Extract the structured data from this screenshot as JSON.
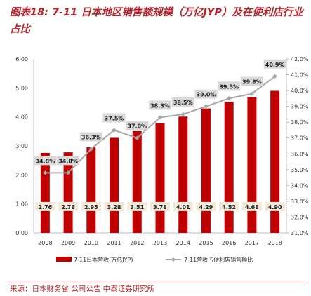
{
  "title": "图表18: 7-11 日本地区销售额规模（万亿JYP）及在便利店行业占比",
  "source": "来源：日本财务省 公司公告 中泰证券研究所",
  "colors": {
    "bar": "#c00000",
    "line": "#a6a6a6",
    "accent": "#b3222a"
  },
  "chart_data": {
    "type": "bar",
    "categories": [
      "2008",
      "2009",
      "2010",
      "2011",
      "2012",
      "2013",
      "2014",
      "2015",
      "2016",
      "2017",
      "2018"
    ],
    "series": [
      {
        "name": "7-11日本营收(万亿JYP)",
        "type": "bar",
        "axis": "left",
        "values": [
          2.76,
          2.78,
          2.95,
          3.28,
          3.51,
          3.78,
          4.01,
          4.29,
          4.52,
          4.68,
          4.9
        ],
        "labels": [
          "2.76",
          "2.78",
          "2.95",
          "3.28",
          "3.51",
          "3.78",
          "4.01",
          "4.29",
          "4.52",
          "4.68",
          "4.90"
        ]
      },
      {
        "name": "7-11营收占便利店销售额比",
        "type": "line",
        "axis": "right",
        "values": [
          34.8,
          34.8,
          36.3,
          37.5,
          37.0,
          38.3,
          38.5,
          39.0,
          39.5,
          39.8,
          40.9
        ],
        "labels": [
          "34.8%",
          "34.8%",
          "36.3%",
          "37.5%",
          "37.0%",
          "38.3%",
          "38.5%",
          "39.0%",
          "39.5%",
          "39.8%",
          "40.9%"
        ]
      }
    ],
    "y_left": {
      "min": 0,
      "max": 6,
      "step": 1,
      "ticks": [
        "0.00",
        "1.00",
        "2.00",
        "3.00",
        "4.00",
        "5.00",
        "6.00"
      ]
    },
    "y_right": {
      "min": 31,
      "max": 42,
      "step": 1,
      "ticks": [
        "31.0%",
        "32.0%",
        "33.0%",
        "34.0%",
        "35.0%",
        "36.0%",
        "37.0%",
        "38.0%",
        "39.0%",
        "40.0%",
        "41.0%",
        "42.0%"
      ]
    },
    "legend_position": "bottom",
    "grid": false
  }
}
